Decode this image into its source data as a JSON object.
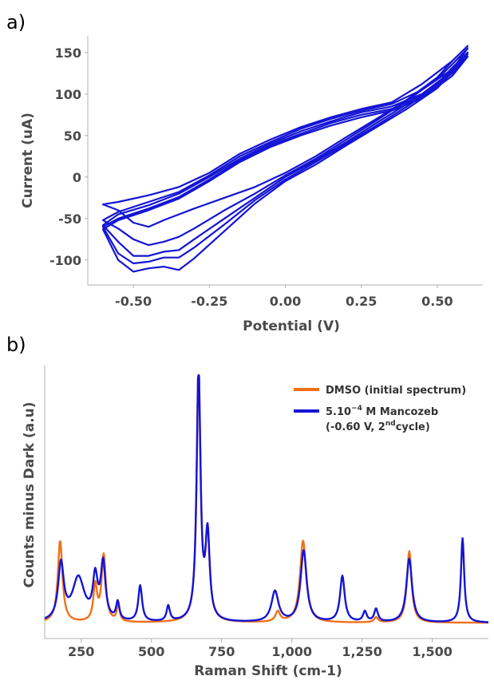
{
  "chart_data": [
    {
      "panel_label": "a)",
      "type": "line",
      "xlabel": "Potential (V)",
      "ylabel": "Current (uA)",
      "xlim": [
        -0.65,
        0.65
      ],
      "ylim": [
        -130,
        170
      ],
      "xticks": [
        -0.5,
        -0.25,
        0.0,
        0.25,
        0.5
      ],
      "xtick_labels": [
        "-0.50",
        "-0.25",
        "0.00",
        "0.25",
        "0.50"
      ],
      "yticks": [
        -100,
        -50,
        0,
        50,
        100,
        150
      ],
      "ytick_labels": [
        "-100",
        "-50",
        "0",
        "50",
        "100",
        "150"
      ],
      "color": "#1414d4",
      "grid": false,
      "series": [
        {
          "x": [
            0.6,
            0.55,
            0.45,
            0.35,
            0.25,
            0.15,
            0.05,
            -0.05,
            -0.15,
            -0.25,
            -0.35,
            -0.45,
            -0.55,
            -0.6,
            -0.55,
            -0.5,
            -0.45,
            -0.4,
            -0.35,
            -0.3,
            -0.2,
            -0.1,
            0.0,
            0.1,
            0.2,
            0.3,
            0.4,
            0.5,
            0.55,
            0.6
          ],
          "y": [
            158,
            140,
            112,
            90,
            82,
            72,
            60,
            45,
            28,
            5,
            -12,
            -22,
            -30,
            -33,
            -40,
            -55,
            -60,
            -52,
            -45,
            -38,
            -25,
            -12,
            5,
            25,
            48,
            70,
            93,
            120,
            140,
            158
          ]
        },
        {
          "x": [
            0.6,
            0.55,
            0.45,
            0.35,
            0.25,
            0.15,
            0.05,
            -0.05,
            -0.15,
            -0.25,
            -0.35,
            -0.45,
            -0.55,
            -0.6,
            -0.55,
            -0.5,
            -0.45,
            -0.4,
            -0.35,
            -0.3,
            -0.2,
            -0.1,
            0.0,
            0.1,
            0.2,
            0.3,
            0.4,
            0.5,
            0.55,
            0.6
          ],
          "y": [
            155,
            130,
            105,
            88,
            80,
            70,
            58,
            42,
            25,
            2,
            -18,
            -30,
            -42,
            -52,
            -62,
            -75,
            -82,
            -78,
            -72,
            -62,
            -40,
            -20,
            2,
            22,
            45,
            68,
            92,
            118,
            136,
            155
          ]
        },
        {
          "x": [
            0.6,
            0.55,
            0.45,
            0.35,
            0.25,
            0.15,
            0.05,
            -0.05,
            -0.15,
            -0.25,
            -0.35,
            -0.45,
            -0.55,
            -0.6,
            -0.55,
            -0.5,
            -0.45,
            -0.4,
            -0.35,
            -0.3,
            -0.2,
            -0.1,
            0.0,
            0.1,
            0.2,
            0.3,
            0.4,
            0.5,
            0.55,
            0.6
          ],
          "y": [
            150,
            128,
            100,
            85,
            78,
            67,
            55,
            40,
            22,
            0,
            -20,
            -34,
            -45,
            -58,
            -78,
            -95,
            -95,
            -90,
            -88,
            -75,
            -50,
            -25,
            0,
            20,
            42,
            65,
            88,
            112,
            132,
            150
          ]
        },
        {
          "x": [
            0.6,
            0.55,
            0.45,
            0.35,
            0.25,
            0.15,
            0.05,
            -0.05,
            -0.15,
            -0.25,
            -0.35,
            -0.45,
            -0.55,
            -0.6,
            -0.55,
            -0.5,
            -0.45,
            -0.4,
            -0.35,
            -0.3,
            -0.2,
            -0.1,
            0.0,
            0.1,
            0.2,
            0.3,
            0.4,
            0.5,
            0.55,
            0.6
          ],
          "y": [
            148,
            125,
            98,
            82,
            75,
            65,
            52,
            38,
            20,
            -3,
            -24,
            -38,
            -50,
            -60,
            -92,
            -104,
            -102,
            -97,
            -97,
            -85,
            -57,
            -28,
            -3,
            18,
            40,
            62,
            85,
            110,
            130,
            148
          ]
        },
        {
          "x": [
            0.6,
            0.55,
            0.45,
            0.35,
            0.25,
            0.15,
            0.05,
            -0.05,
            -0.15,
            -0.25,
            -0.35,
            -0.45,
            -0.55,
            -0.6,
            -0.55,
            -0.5,
            -0.45,
            -0.4,
            -0.35,
            -0.3,
            -0.2,
            -0.1,
            0.0,
            0.1,
            0.2,
            0.3,
            0.4,
            0.5,
            0.55,
            0.6
          ],
          "y": [
            145,
            122,
            95,
            80,
            72,
            62,
            50,
            36,
            18,
            -5,
            -26,
            -40,
            -52,
            -63,
            -100,
            -114,
            -110,
            -108,
            -112,
            -98,
            -65,
            -32,
            -5,
            15,
            38,
            60,
            82,
            107,
            127,
            145
          ]
        }
      ]
    },
    {
      "panel_label": "b)",
      "type": "line",
      "xlabel": "Raman Shift (cm-1)",
      "ylabel": "Counts minus Dark (a.u)",
      "xlim": [
        120,
        1700
      ],
      "ylim": [
        0,
        1
      ],
      "xticks": [
        250,
        500,
        750,
        1000,
        1250,
        1500
      ],
      "xtick_labels": [
        "250",
        "500",
        "750",
        "1,000",
        "1,250",
        "1,500"
      ],
      "legend_position": "top-right",
      "grid": false,
      "series": [
        {
          "name": "DMSO (initial spectrum)",
          "color": "#f07018",
          "baseline": 0.03,
          "peaks": [
            [
              175,
              0.32,
              10
            ],
            [
              300,
              0.14,
              8
            ],
            [
              330,
              0.26,
              9
            ],
            [
              382,
              0.07,
              6
            ],
            [
              668,
              1.0,
              8
            ],
            [
              700,
              0.33,
              9
            ],
            [
              950,
              0.04,
              10
            ],
            [
              1040,
              0.32,
              13
            ],
            [
              1300,
              0.02,
              8
            ],
            [
              1418,
              0.28,
              10
            ]
          ]
        },
        {
          "name": "5.10^{-4} M Mancozeb (-0.60 V, 2^{nd} cycle)",
          "color": "#1414d4",
          "baseline": 0.03,
          "peaks": [
            [
              178,
              0.22,
              12
            ],
            [
              240,
              0.17,
              26
            ],
            [
              300,
              0.16,
              10
            ],
            [
              328,
              0.22,
              10
            ],
            [
              380,
              0.07,
              7
            ],
            [
              460,
              0.14,
              8
            ],
            [
              560,
              0.06,
              7
            ],
            [
              668,
              0.99,
              8
            ],
            [
              700,
              0.33,
              9
            ],
            [
              940,
              0.12,
              15
            ],
            [
              1042,
              0.28,
              13
            ],
            [
              1180,
              0.18,
              10
            ],
            [
              1260,
              0.04,
              8
            ],
            [
              1300,
              0.05,
              8
            ],
            [
              1418,
              0.25,
              12
            ],
            [
              1608,
              0.33,
              7
            ]
          ]
        }
      ]
    }
  ]
}
